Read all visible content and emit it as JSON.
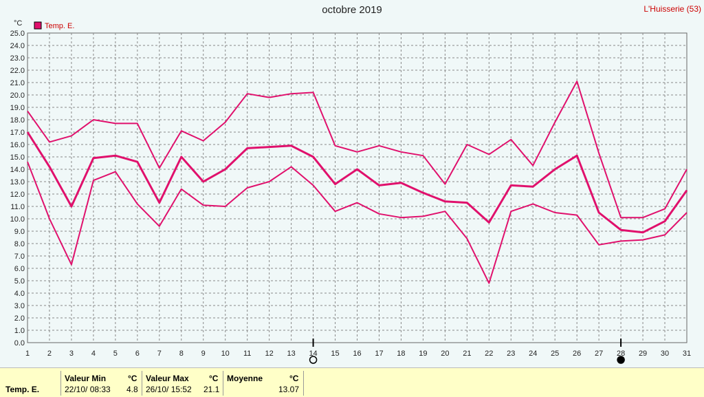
{
  "chart_data": {
    "type": "line",
    "title": "octobre 2019",
    "station": "L'Huisserie (53)",
    "ylabel": "°C",
    "ylim": [
      0,
      25
    ],
    "ytick_step": 1,
    "grid": true,
    "legend_placement": "top-left",
    "x": [
      1,
      2,
      3,
      4,
      5,
      6,
      7,
      8,
      9,
      10,
      11,
      12,
      13,
      14,
      15,
      16,
      17,
      18,
      19,
      20,
      21,
      22,
      23,
      24,
      25,
      26,
      27,
      28,
      29,
      30,
      31
    ],
    "series": [
      {
        "name": "Temp. E.",
        "role": "max",
        "color": "#e0106c",
        "values": [
          18.7,
          16.2,
          16.7,
          18.0,
          17.7,
          17.7,
          14.1,
          17.1,
          16.3,
          17.8,
          20.1,
          19.8,
          20.1,
          20.2,
          15.9,
          15.4,
          15.9,
          15.4,
          15.1,
          12.8,
          16.0,
          15.2,
          16.4,
          14.3,
          17.8,
          21.1,
          15.3,
          10.1,
          10.1,
          10.8,
          14.0
        ]
      },
      {
        "role": "mean",
        "color": "#e0106c",
        "values": [
          17.0,
          14.2,
          11.0,
          14.9,
          15.1,
          14.6,
          11.3,
          15.0,
          13.0,
          14.0,
          15.7,
          15.8,
          15.9,
          15.0,
          12.8,
          14.0,
          12.7,
          12.9,
          12.1,
          11.4,
          11.3,
          9.7,
          12.7,
          12.6,
          14.0,
          15.1,
          10.5,
          9.1,
          8.9,
          9.8,
          12.3
        ]
      },
      {
        "role": "min",
        "color": "#e0106c",
        "values": [
          14.6,
          10.0,
          6.3,
          13.1,
          13.8,
          11.2,
          9.4,
          12.4,
          11.1,
          11.0,
          12.5,
          13.0,
          14.2,
          12.7,
          10.6,
          11.3,
          10.4,
          10.1,
          10.2,
          10.6,
          8.4,
          4.8,
          10.6,
          11.2,
          10.5,
          10.3,
          7.9,
          8.2,
          8.3,
          8.7,
          10.5
        ]
      }
    ],
    "moon_phases": [
      {
        "day": 14,
        "phase": "full",
        "symbol": "○"
      },
      {
        "day": 28,
        "phase": "new",
        "symbol": "●"
      }
    ]
  },
  "footer": {
    "series_label": "Temp. E.",
    "min": {
      "label": "Valeur Min",
      "unit": "°C",
      "when": "22/10/ 08:33",
      "value": "4.8"
    },
    "max": {
      "label": "Valeur Max",
      "unit": "°C",
      "when": "26/10/ 15:52",
      "value": "21.1"
    },
    "mean": {
      "label": "Moyenne",
      "unit": "°C",
      "value": "13.07"
    }
  }
}
